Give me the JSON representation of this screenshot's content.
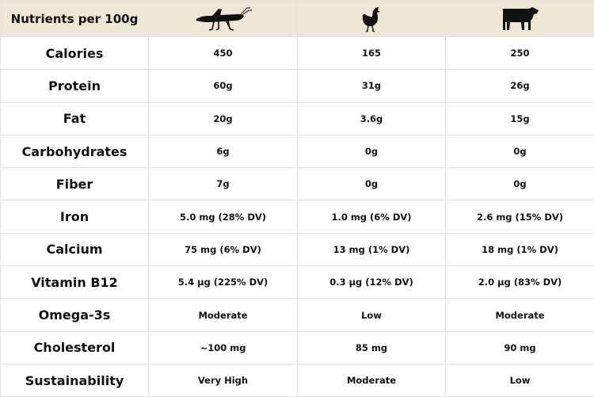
{
  "header": {
    "title": "Nutrients per 100g",
    "columns": [
      {
        "icon": "grasshopper-icon"
      },
      {
        "icon": "chicken-icon"
      },
      {
        "icon": "cow-icon"
      }
    ]
  },
  "rows": [
    {
      "label": "Calories",
      "values": [
        "450",
        "165",
        "250"
      ]
    },
    {
      "label": "Protein",
      "values": [
        "60g",
        "31g",
        "26g"
      ]
    },
    {
      "label": "Fat",
      "values": [
        "20g",
        "3.6g",
        "15g"
      ]
    },
    {
      "label": "Carbohydrates",
      "values": [
        "6g",
        "0g",
        "0g"
      ]
    },
    {
      "label": "Fiber",
      "values": [
        "7g",
        "0g",
        "0g"
      ]
    },
    {
      "label": "Iron",
      "values": [
        "5.0 mg (28% DV)",
        "1.0 mg (6% DV)",
        "2.6 mg (15% DV)"
      ]
    },
    {
      "label": "Calcium",
      "values": [
        "75 mg (6% DV)",
        "13 mg (1% DV)",
        "18 mg (1% DV)"
      ]
    },
    {
      "label": "Vitamin B12",
      "values": [
        "5.4 µg (225% DV)",
        "0.3 µg (12% DV)",
        "2.0 µg (83% DV)"
      ]
    },
    {
      "label": "Omega-3s",
      "values": [
        "Moderate",
        "Low",
        "Moderate"
      ]
    },
    {
      "label": "Cholesterol",
      "values": [
        "~100 mg",
        "85 mg",
        "90 mg"
      ]
    },
    {
      "label": "Sustainability",
      "values": [
        "Very High",
        "Moderate",
        "Low"
      ]
    }
  ],
  "colors": {
    "header_bg": "#f0e6d5",
    "border": "#e2e2e2",
    "text": "#111111"
  }
}
